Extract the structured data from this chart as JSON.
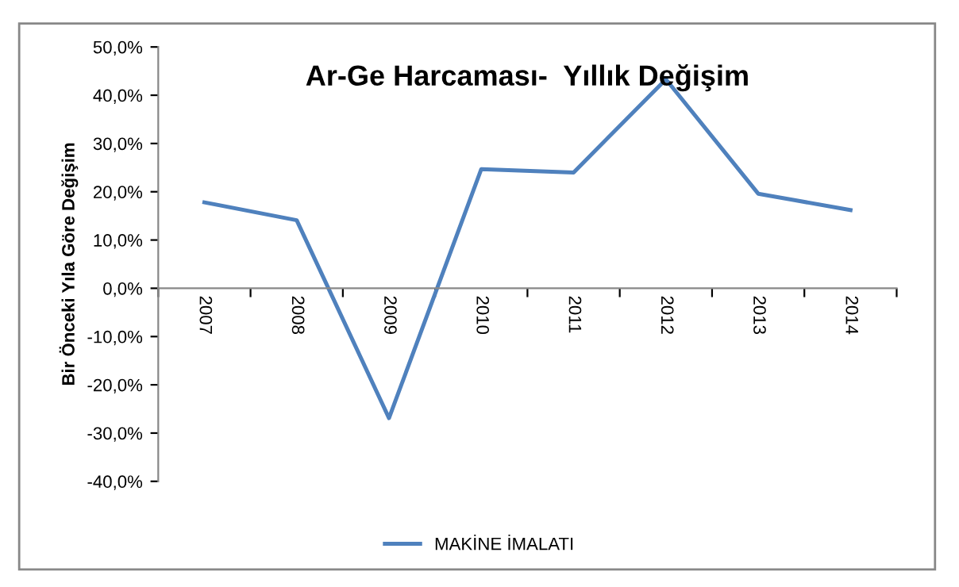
{
  "chart_data": {
    "type": "line",
    "title": "Ar-Ge Harcaması-  Yıllık Değişim",
    "ylabel": "Bir Önceki Yıla Göre Değişim",
    "categories": [
      "2007",
      "2008",
      "2009",
      "2010",
      "2011",
      "2012",
      "2013",
      "2014"
    ],
    "series": [
      {
        "name": "MAKİNE İMALATI",
        "color": "#4f81bd",
        "values": [
          17.8,
          14.1,
          -26.9,
          24.7,
          24.0,
          43.3,
          19.6,
          16.2
        ]
      }
    ],
    "ylim": [
      -40,
      50
    ],
    "yticks": [
      {
        "value": -40,
        "label": "-40,0%"
      },
      {
        "value": -30,
        "label": "-30,0%"
      },
      {
        "value": -20,
        "label": "-20,0%"
      },
      {
        "value": -10,
        "label": "-10,0%"
      },
      {
        "value": 0,
        "label": "0,0%"
      },
      {
        "value": 10,
        "label": "10,0%"
      },
      {
        "value": 20,
        "label": "20,0%"
      },
      {
        "value": 30,
        "label": "30,0%"
      },
      {
        "value": 40,
        "label": "40,0%"
      },
      {
        "value": 50,
        "label": "50,0%"
      }
    ],
    "grid": false,
    "legend": "bottom",
    "marker": "none",
    "line_style": "solid"
  }
}
